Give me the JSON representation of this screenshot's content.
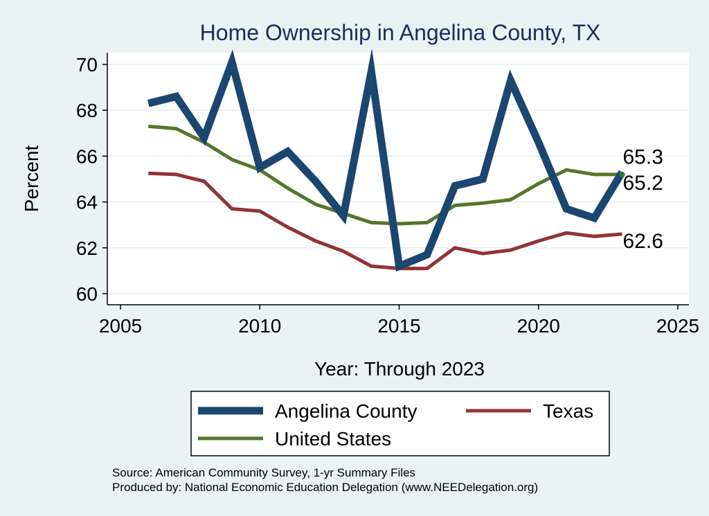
{
  "chart_data": {
    "type": "line",
    "title": "Home Ownership in Angelina County, TX",
    "xlabel": "Year: Through 2023",
    "ylabel": "Percent",
    "xlim": [
      2005,
      2025
    ],
    "ylim": [
      60,
      70
    ],
    "xticks": [
      2005,
      2010,
      2015,
      2020,
      2025
    ],
    "yticks": [
      60,
      62,
      64,
      66,
      68,
      70
    ],
    "grid": true,
    "legend_position": "bottom",
    "series": [
      {
        "name": "Angelina County",
        "color": "#1a4670",
        "width": "thick",
        "x": [
          2006,
          2007,
          2008,
          2009,
          2010,
          2011,
          2012,
          2013,
          2014,
          2015,
          2016,
          2017,
          2018,
          2019,
          2020,
          2021,
          2022,
          2023
        ],
        "values": [
          68.3,
          68.6,
          66.8,
          70.1,
          65.5,
          66.2,
          64.9,
          63.4,
          69.7,
          61.2,
          61.7,
          64.7,
          65.0,
          69.3,
          66.6,
          63.7,
          63.3,
          65.3
        ],
        "end_label": "65.3"
      },
      {
        "name": "Texas",
        "color": "#903335",
        "width": "medium",
        "x": [
          2006,
          2007,
          2008,
          2009,
          2010,
          2011,
          2012,
          2013,
          2014,
          2015,
          2016,
          2017,
          2018,
          2019,
          2020,
          2021,
          2022,
          2023
        ],
        "values": [
          65.25,
          65.2,
          64.9,
          63.7,
          63.6,
          62.9,
          62.3,
          61.85,
          61.2,
          61.1,
          61.1,
          62.0,
          61.75,
          61.9,
          62.3,
          62.65,
          62.5,
          62.6
        ],
        "end_label": "62.6"
      },
      {
        "name": "United States",
        "color": "#55762a",
        "width": "medium",
        "x": [
          2006,
          2007,
          2008,
          2009,
          2010,
          2011,
          2012,
          2013,
          2014,
          2015,
          2016,
          2017,
          2018,
          2019,
          2020,
          2021,
          2022,
          2023
        ],
        "values": [
          67.3,
          67.2,
          66.6,
          65.85,
          65.4,
          64.6,
          63.9,
          63.5,
          63.1,
          63.05,
          63.1,
          63.85,
          63.95,
          64.1,
          64.8,
          65.4,
          65.2,
          65.2
        ],
        "end_label": "65.2"
      }
    ],
    "notes": [
      "Source: American Community Survey, 1-yr Summary Files",
      "Produced by: National Economic Education Delegation (www.NEEDelegation.org)"
    ]
  }
}
